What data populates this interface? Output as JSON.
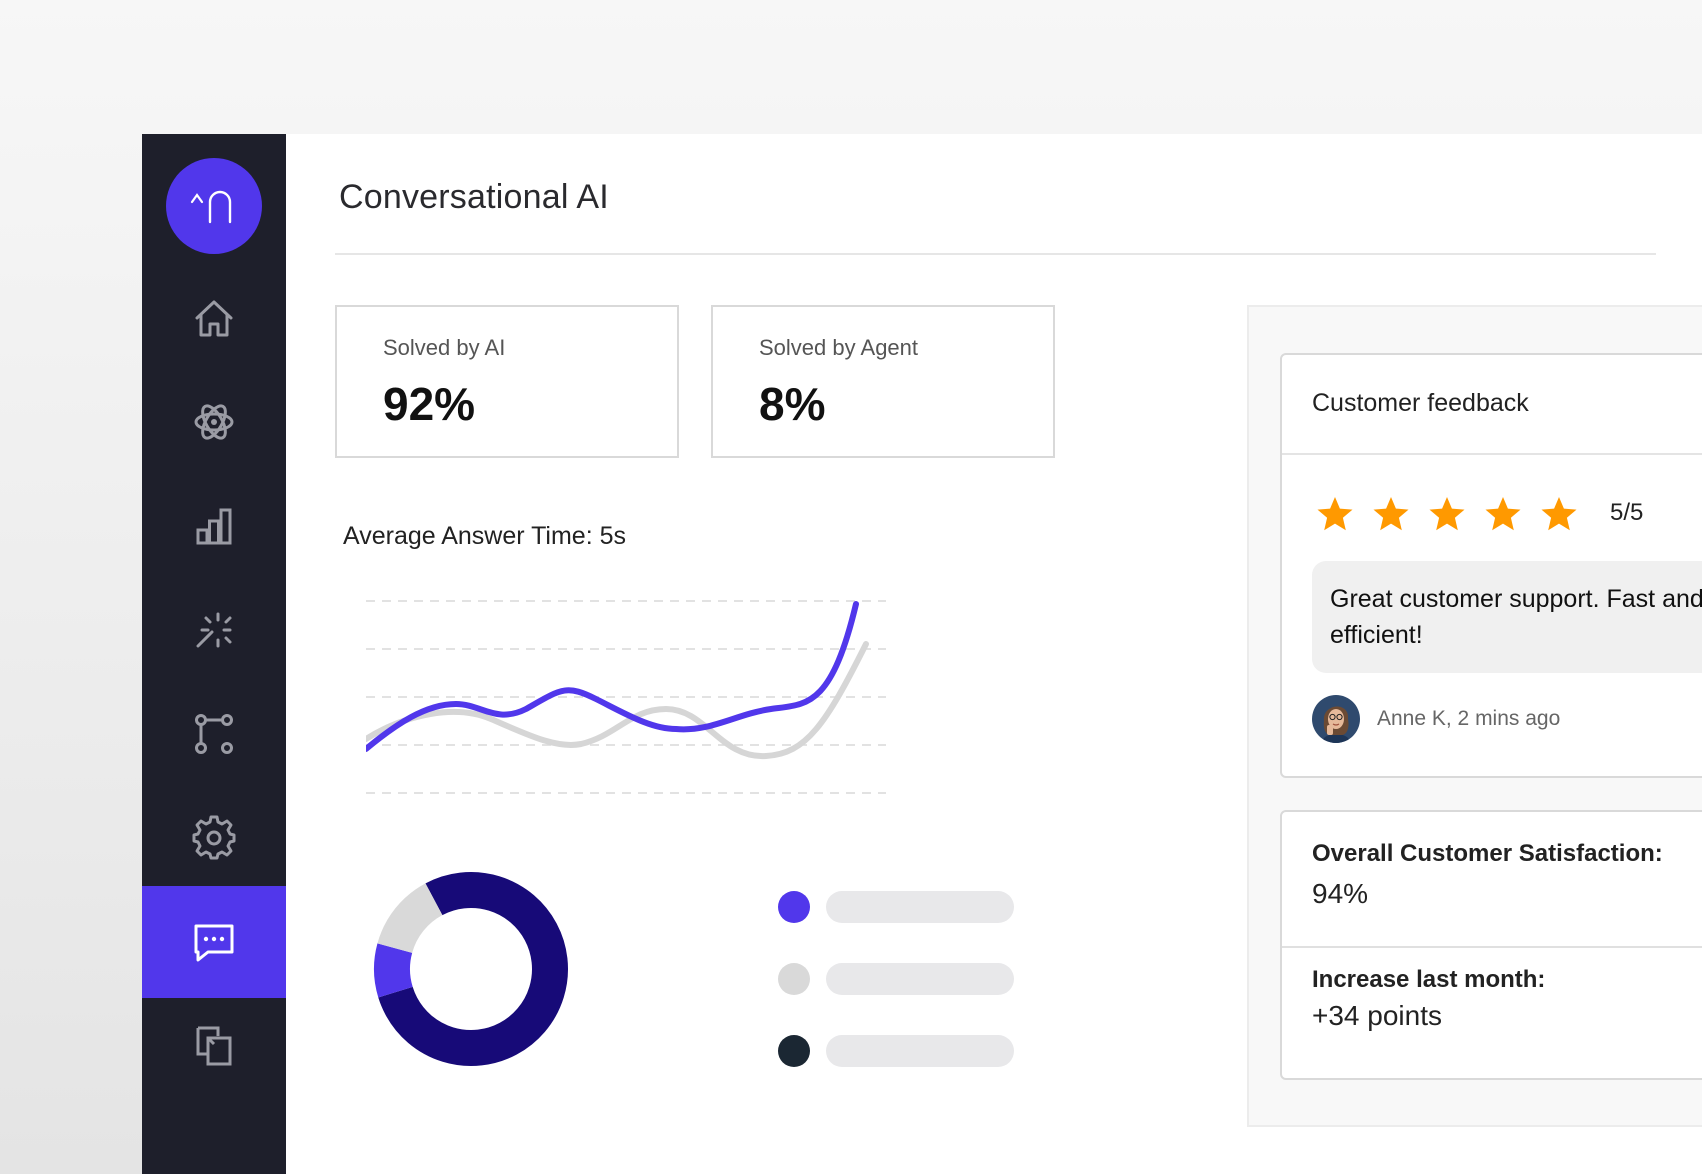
{
  "header": {
    "title": "Conversational AI",
    "external_link_icon": "external-link-icon"
  },
  "sidebar": {
    "logo_text": "^∩",
    "items": [
      {
        "name": "home",
        "icon": "home-icon",
        "active": false
      },
      {
        "name": "ai",
        "icon": "atom-icon",
        "active": false
      },
      {
        "name": "analytics",
        "icon": "bar-chart-icon",
        "active": false
      },
      {
        "name": "magic",
        "icon": "magic-wand-icon",
        "active": false
      },
      {
        "name": "flows",
        "icon": "branch-icon",
        "active": false
      },
      {
        "name": "settings",
        "icon": "gear-icon",
        "active": false
      },
      {
        "name": "conversations",
        "icon": "chat-icon",
        "active": true
      },
      {
        "name": "copy",
        "icon": "copy-icon",
        "active": false
      }
    ]
  },
  "stats": {
    "ai": {
      "label": "Solved by AI",
      "value": "92%"
    },
    "agent": {
      "label": "Solved by Agent",
      "value": "8%"
    }
  },
  "line_chart": {
    "title": "Average Answer Time: 5s"
  },
  "donut": {
    "segments": [
      {
        "fraction": 0.78,
        "color": "#170a78"
      },
      {
        "fraction": 0.09,
        "color": "#5137eb"
      },
      {
        "fraction": 0.13,
        "color": "#d9d9d9"
      }
    ]
  },
  "legend": [
    {
      "color": "#5137eb"
    },
    {
      "color": "#d9d9d9"
    },
    {
      "color": "#1b2733"
    }
  ],
  "feedback": {
    "title": "Customer feedback",
    "stars": 5,
    "rating": "5/5",
    "comment": "Great customer support. Fast and efficient!",
    "author": "Anne K, 2 mins ago"
  },
  "satisfaction": {
    "overall_label": "Overall Customer Satisfaction:",
    "overall_value": "94%",
    "increase_label": "Increase last month:",
    "increase_value": "+34 points"
  },
  "colors": {
    "accent": "#5137eb",
    "sidebar_bg": "#1e1f2b",
    "star": "#ff9900",
    "dark_segment": "#170a78"
  }
}
